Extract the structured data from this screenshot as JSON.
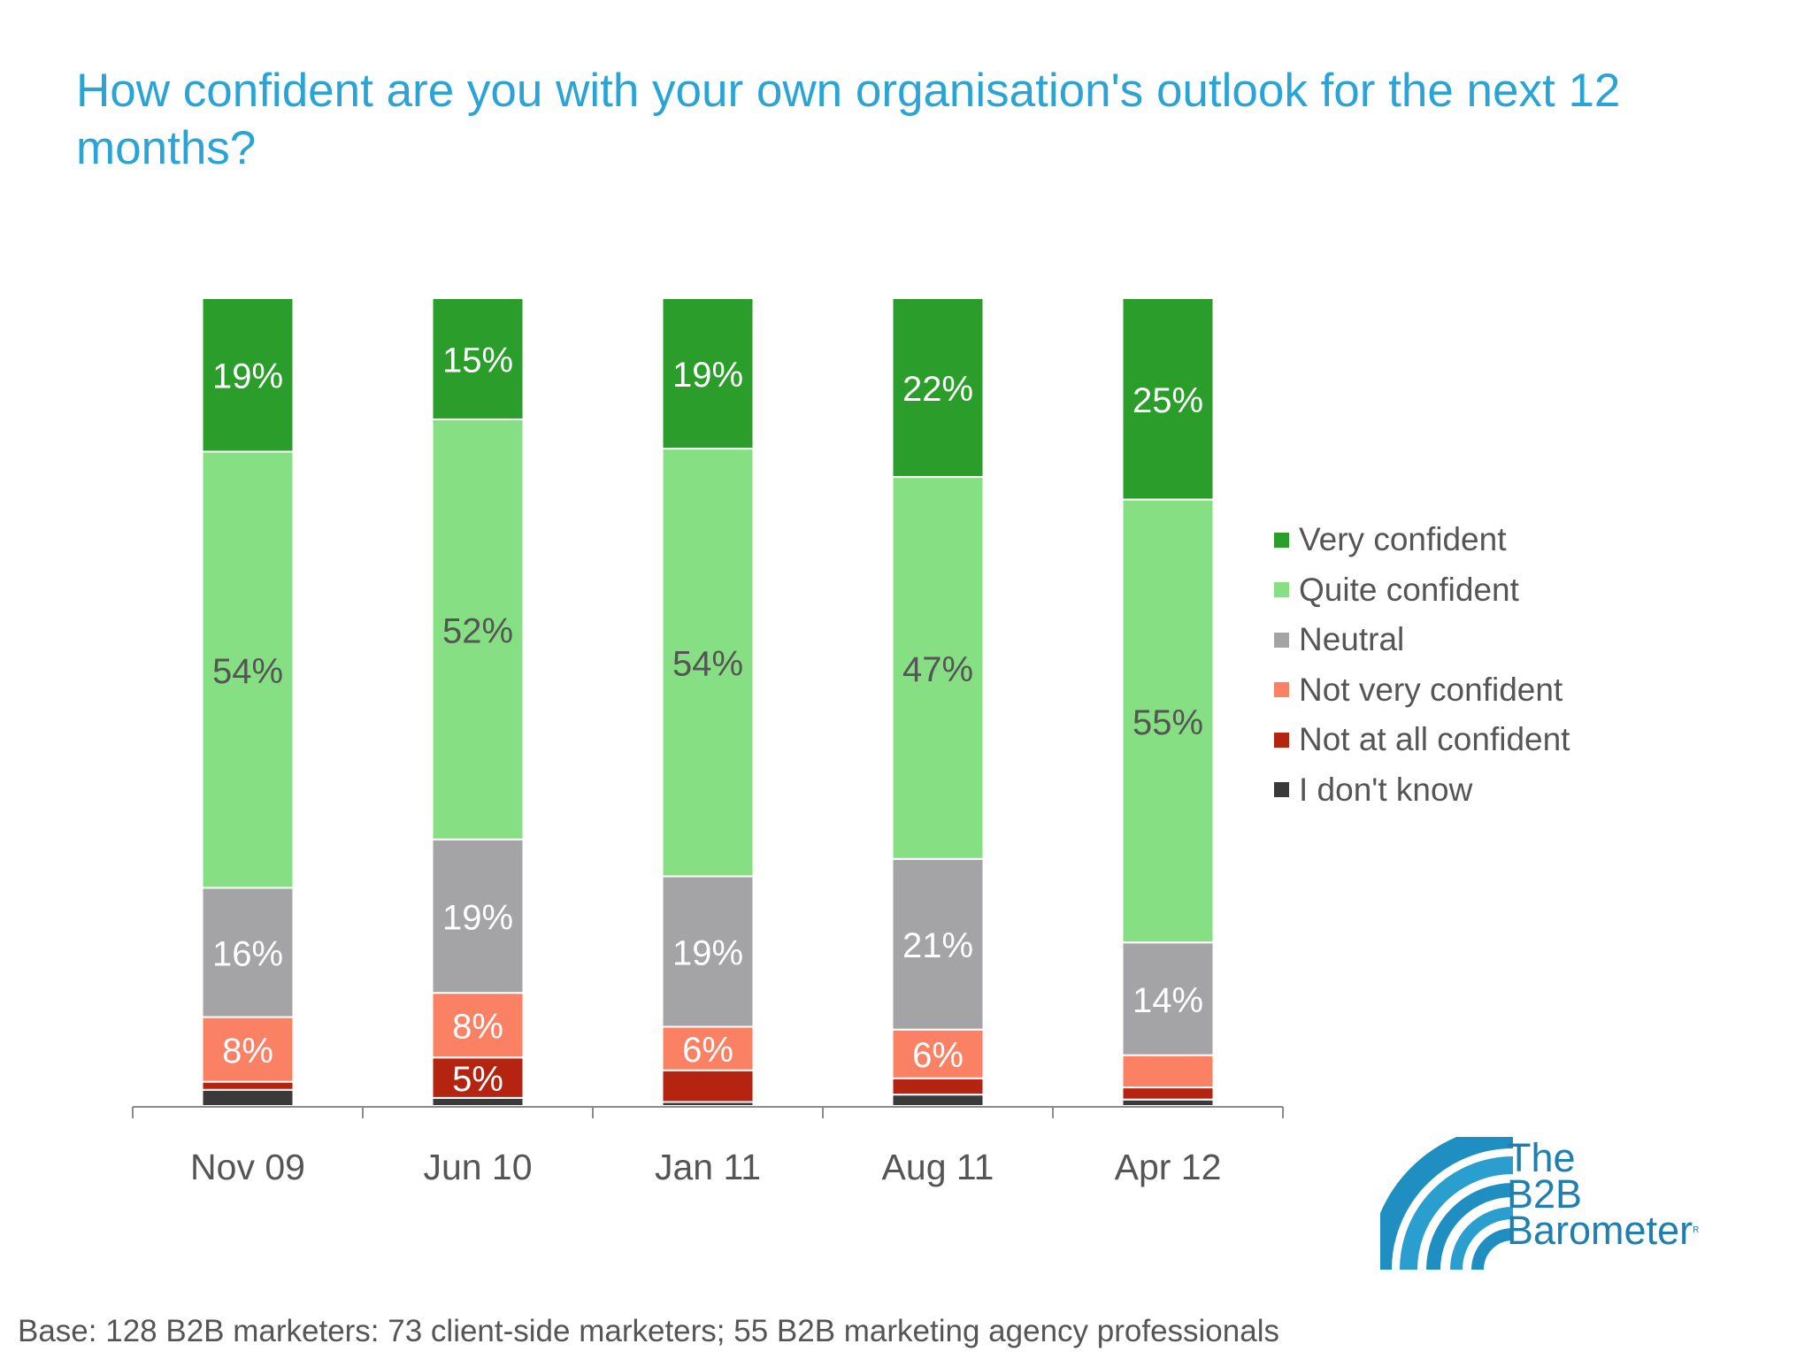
{
  "title": "How confident are you with your own organisation's outlook for the next 12 months?",
  "footnote": "Base: 128 B2B marketers: 73 client-side marketers; 55 B2B marketing agency professionals",
  "logo": {
    "line1": "The",
    "line2": "B2B",
    "line3": "Barometer",
    "mark": "R"
  },
  "chart_data": {
    "type": "bar",
    "stacked": true,
    "percent": true,
    "legend_position": "right",
    "grid": false,
    "ylim": [
      0,
      100
    ],
    "categories": [
      "Nov 09",
      "Jun 10",
      "Jan 11",
      "Aug 11",
      "Apr 12"
    ],
    "series": [
      {
        "name": "Very confident",
        "color": "#2a9d2a",
        "label_color": "#ffffff",
        "values": [
          19,
          15,
          19,
          22,
          25
        ],
        "labels": [
          "19%",
          "15%",
          "19%",
          "22%",
          "25%"
        ]
      },
      {
        "name": "Quite confident",
        "color": "#86e083",
        "label_color": "#555555",
        "values": [
          54,
          52,
          54,
          47,
          55
        ],
        "labels": [
          "54%",
          "52%",
          "54%",
          "47%",
          "55%"
        ]
      },
      {
        "name": "Neutral",
        "color": "#a4a3a6",
        "label_color": "#ffffff",
        "values": [
          16,
          19,
          19,
          21,
          14
        ],
        "labels": [
          "16%",
          "19%",
          "19%",
          "21%",
          "14%"
        ]
      },
      {
        "name": "Not very confident",
        "color": "#fb8165",
        "label_color": "#ffffff",
        "values": [
          8,
          8,
          5.5,
          6,
          4
        ],
        "labels": [
          "8%",
          "8%",
          "6%",
          "6%",
          ""
        ]
      },
      {
        "name": "Not at all confident",
        "color": "#b42410",
        "label_color": "#ffffff",
        "values": [
          1,
          5,
          4,
          2,
          1.5
        ],
        "labels": [
          "",
          "5%",
          "",
          "",
          ""
        ]
      },
      {
        "name": "I don't know",
        "color": "#3a3a3a",
        "label_color": "#ffffff",
        "values": [
          2,
          1,
          0.5,
          1.4,
          0.8
        ],
        "labels": [
          "",
          "",
          "",
          "",
          ""
        ]
      }
    ]
  }
}
